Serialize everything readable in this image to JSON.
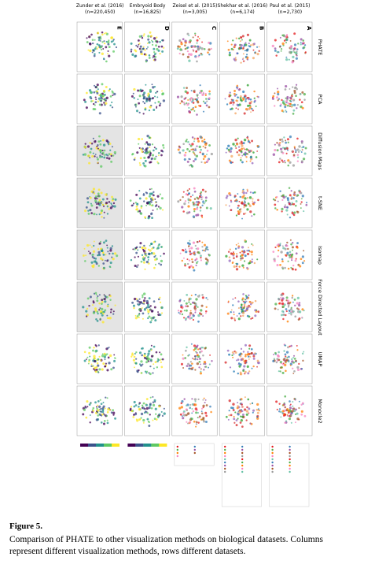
{
  "columns": [
    {
      "title": "Zunder et al. (2016)",
      "n": "(n=220,450)",
      "letter": "E"
    },
    {
      "title": "Embryoid Body",
      "n": "(n=16,825)",
      "letter": "D"
    },
    {
      "title": "Zeisel et al. (2015)",
      "n": "(n=3,005)",
      "letter": "C"
    },
    {
      "title": "Shekhar et al. (2016)",
      "n": "(n=6,174)",
      "letter": "B"
    },
    {
      "title": "Paul et al. (2015)",
      "n": "(n=2,730)",
      "letter": "A"
    }
  ],
  "rows": [
    "PHATE",
    "PCA",
    "Diffusion Maps",
    "t-SNE",
    "Isomap",
    "Force Directed Layout",
    "UMAP",
    "Monocle2"
  ],
  "figure": {
    "label": "Figure 5.",
    "caption": "Comparison of PHATE to other visualization methods on biological datasets. Columns represent different visualization methods, rows different datasets."
  }
}
